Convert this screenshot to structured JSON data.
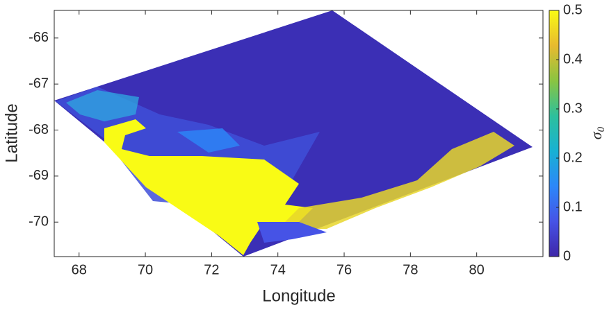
{
  "chart_data": {
    "type": "image",
    "x_label": "Longitude",
    "y_label": "Latitude",
    "xlim": [
      67.25,
      82
    ],
    "xticks": [
      68,
      70,
      72,
      74,
      76,
      78,
      80
    ],
    "ylim": [
      -70.75,
      -65.4
    ],
    "yticks": [
      -70,
      -69,
      -68,
      -67,
      -66
    ],
    "colorbar": {
      "label": "σ",
      "label_subscript": "0",
      "clim": [
        0,
        0.5
      ],
      "ticks": [
        0,
        0.1,
        0.2,
        0.3,
        0.4,
        0.5
      ],
      "colormap": [
        "#3e26a8",
        "#4653e6",
        "#2c87f9",
        "#18b1d3",
        "#2dc09c",
        "#8ac441",
        "#e8ba2f",
        "#f9fb15"
      ]
    }
  }
}
